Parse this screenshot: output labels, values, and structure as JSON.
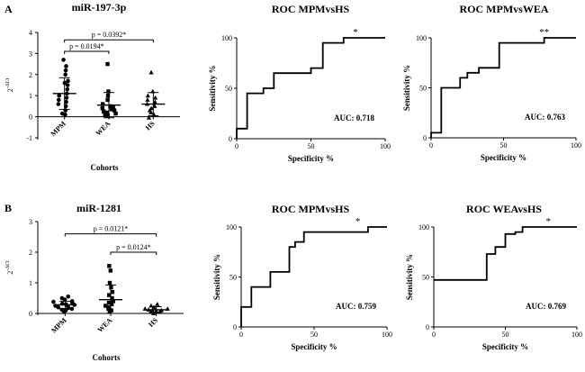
{
  "panel_labels": {
    "a": "A",
    "b": "B"
  },
  "chart_data": [
    {
      "id": "A_scatter",
      "type": "scatter",
      "title": "miR-197-3p",
      "ylabel": "2^-ΔCt",
      "ylabel_base": "2",
      "ylabel_exp": "-ΔCt",
      "xlabel": "Cohorts",
      "categories": [
        "MPM",
        "WEA",
        "HS"
      ],
      "ylim": [
        -1,
        4
      ],
      "yticks": [
        -1,
        0,
        1,
        2,
        3,
        4
      ],
      "markers": [
        "circle",
        "square",
        "triangle"
      ],
      "groups": [
        {
          "name": "MPM",
          "values": [
            0.1,
            0.15,
            0.3,
            0.5,
            0.6,
            0.7,
            0.8,
            0.9,
            1.0,
            1.1,
            1.3,
            1.5,
            1.6,
            1.7,
            2.0,
            2.2,
            2.4,
            2.7
          ],
          "mean": 1.1,
          "sd": 0.75
        },
        {
          "name": "WEA",
          "values": [
            0.05,
            0.1,
            0.15,
            0.2,
            0.25,
            0.3,
            0.35,
            0.4,
            0.45,
            0.5,
            0.6,
            0.8,
            1.0,
            1.2,
            2.5
          ],
          "mean": 0.55,
          "sd": 0.6
        },
        {
          "name": "HS",
          "values": [
            -0.05,
            0.1,
            0.2,
            0.3,
            0.4,
            0.5,
            0.6,
            0.7,
            0.8,
            0.9,
            1.0,
            1.2,
            2.1
          ],
          "mean": 0.6,
          "sd": 0.55
        }
      ],
      "comparisons": [
        {
          "from": "MPM",
          "to": "WEA",
          "label": "p = 0.0194*",
          "y": 3.1
        },
        {
          "from": "MPM",
          "to": "HS",
          "label": "p = 0.0392*",
          "y": 3.65
        }
      ]
    },
    {
      "id": "A_roc1",
      "type": "line",
      "title": "ROC MPMvsHS",
      "xlabel": "Specificity %",
      "ylabel": "Sensitivity %",
      "xlim": [
        0,
        100
      ],
      "ylim": [
        0,
        100
      ],
      "xticks": [
        0,
        50,
        100
      ],
      "yticks": [
        0,
        50,
        100
      ],
      "x": [
        0,
        0,
        7,
        7,
        18,
        18,
        25,
        25,
        30,
        30,
        50,
        50,
        58,
        58,
        72,
        72,
        100
      ],
      "y": [
        0,
        10,
        10,
        45,
        45,
        50,
        50,
        65,
        65,
        65,
        65,
        70,
        70,
        95,
        95,
        100,
        100
      ],
      "auc_label": "AUC: 0.718",
      "significance": "*",
      "sig_x": 80
    },
    {
      "id": "A_roc2",
      "type": "line",
      "title": "ROC MPMvsWEA",
      "xlabel": "Specificity %",
      "ylabel": "Sensitivity %",
      "xlim": [
        0,
        100
      ],
      "ylim": [
        0,
        100
      ],
      "xticks": [
        0,
        50,
        100
      ],
      "yticks": [
        0,
        50,
        100
      ],
      "x": [
        0,
        0,
        7,
        7,
        20,
        20,
        25,
        25,
        33,
        33,
        47,
        47,
        78,
        78,
        100
      ],
      "y": [
        0,
        5,
        5,
        50,
        50,
        60,
        60,
        65,
        65,
        70,
        70,
        95,
        95,
        100,
        100
      ],
      "auc_label": "AUC: 0.763",
      "significance": "**",
      "sig_x": 78
    },
    {
      "id": "B_scatter",
      "type": "scatter",
      "title": "miR-1281",
      "ylabel": "2^-ΔCt",
      "ylabel_base": "2",
      "ylabel_exp": "-ΔCt",
      "xlabel": "Cohorts",
      "categories": [
        "MPM",
        "WEA",
        "HS"
      ],
      "ylim": [
        0,
        3
      ],
      "yticks": [
        0,
        1,
        2,
        3
      ],
      "markers": [
        "circle",
        "square",
        "triangle"
      ],
      "groups": [
        {
          "name": "MPM",
          "values": [
            0.05,
            0.1,
            0.12,
            0.15,
            0.18,
            0.2,
            0.22,
            0.25,
            0.28,
            0.3,
            0.32,
            0.35,
            0.38,
            0.4,
            0.45,
            0.5,
            0.55
          ],
          "mean": 0.28,
          "sd": 0.12
        },
        {
          "name": "WEA",
          "values": [
            0.05,
            0.1,
            0.15,
            0.2,
            0.25,
            0.3,
            0.35,
            0.4,
            0.5,
            0.6,
            0.7,
            0.85,
            1.0,
            1.4,
            1.55
          ],
          "mean": 0.45,
          "sd": 0.48
        },
        {
          "name": "HS",
          "values": [
            0.0,
            0.05,
            0.05,
            0.08,
            0.1,
            0.1,
            0.12,
            0.15,
            0.15,
            0.2,
            0.25,
            0.3
          ],
          "mean": 0.12,
          "sd": 0.1
        }
      ],
      "comparisons": [
        {
          "from": "MPM",
          "to": "HS",
          "label": "p = 0.0121*",
          "y": 2.6
        },
        {
          "from": "WEA",
          "to": "HS",
          "label": "p = 0.0124*",
          "y": 2.0
        }
      ]
    },
    {
      "id": "B_roc1",
      "type": "line",
      "title": "ROC MPMvsHS",
      "xlabel": "Specificity %",
      "ylabel": "Sensitivity %",
      "xlim": [
        0,
        100
      ],
      "ylim": [
        0,
        100
      ],
      "xticks": [
        0,
        50,
        100
      ],
      "yticks": [
        0,
        50,
        100
      ],
      "x": [
        0,
        0,
        7,
        7,
        20,
        20,
        33,
        33,
        37,
        37,
        43,
        43,
        87,
        87,
        100
      ],
      "y": [
        0,
        20,
        20,
        40,
        40,
        55,
        55,
        80,
        80,
        85,
        85,
        95,
        95,
        100,
        100
      ],
      "auc_label": "AUC: 0.759",
      "significance": "*",
      "sig_x": 80
    },
    {
      "id": "B_roc2",
      "type": "line",
      "title": "ROC WEAvsHS",
      "xlabel": "Specificity %",
      "ylabel": "Sensitivity %",
      "xlim": [
        0,
        100
      ],
      "ylim": [
        0,
        100
      ],
      "xticks": [
        0,
        50,
        100
      ],
      "yticks": [
        0,
        50,
        100
      ],
      "x": [
        0,
        37,
        37,
        43,
        43,
        50,
        50,
        57,
        57,
        62,
        62,
        100
      ],
      "y": [
        47,
        47,
        73,
        73,
        80,
        80,
        93,
        93,
        95,
        95,
        100,
        100
      ],
      "auc_label": "AUC: 0.769",
      "significance": "*",
      "sig_x": 80
    }
  ]
}
